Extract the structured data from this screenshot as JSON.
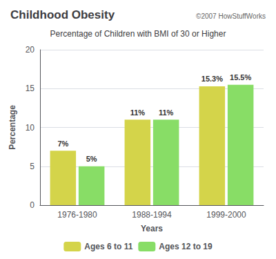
{
  "chart_data": {
    "type": "bar",
    "title": "Childhood Obesity",
    "subtitle": "Percentage of Children with BMI of 30 or Higher",
    "annotations": [
      "©2007 HowStuffWorks"
    ],
    "xlabel": "Years",
    "ylabel": "Percentage",
    "categories": [
      "1976-1980",
      "1988-1994",
      "1999-2000"
    ],
    "series": [
      {
        "name": "Ages 6 to 11",
        "color": "#d4d44a",
        "values": [
          7,
          11,
          15.3
        ],
        "value_labels": [
          "7%",
          "11%",
          "15.3%"
        ]
      },
      {
        "name": "Ages 12 to 19",
        "color": "#88dd66",
        "values": [
          5,
          11,
          15.5
        ],
        "value_labels": [
          "5%",
          "11%",
          "15.5%"
        ]
      }
    ],
    "ylim": [
      0,
      20
    ],
    "yticks": [
      0,
      5,
      10,
      15,
      20
    ],
    "grid": true,
    "legend": "bottom",
    "data_labels": true
  }
}
